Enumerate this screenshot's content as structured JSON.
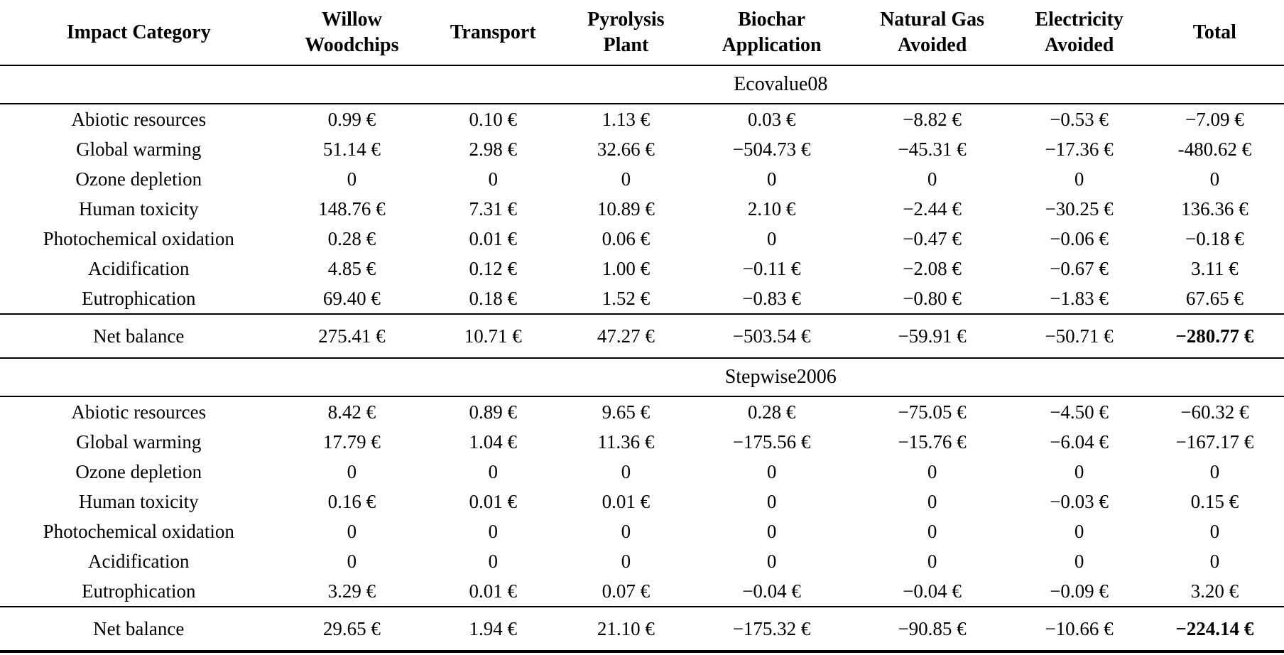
{
  "table": {
    "columns": [
      "Impact Category",
      "Willow Woodchips",
      "Transport",
      "Pyrolysis Plant",
      "Biochar Application",
      "Natural Gas Avoided",
      "Electricity Avoided",
      "Total"
    ],
    "sections": [
      {
        "title": "Ecovalue08",
        "rows": [
          {
            "label": "Abiotic resources",
            "values": [
              "0.99 €",
              "0.10 €",
              "1.13 €",
              "0.03 €",
              "−8.82 €",
              "−0.53 €",
              "−7.09 €"
            ]
          },
          {
            "label": "Global warming",
            "values": [
              "51.14 €",
              "2.98 €",
              "32.66 €",
              "−504.73 €",
              "−45.31 €",
              "−17.36 €",
              "-480.62 €"
            ]
          },
          {
            "label": "Ozone depletion",
            "values": [
              "0",
              "0",
              "0",
              "0",
              "0",
              "0",
              "0"
            ]
          },
          {
            "label": "Human toxicity",
            "values": [
              "148.76 €",
              "7.31 €",
              "10.89 €",
              "2.10 €",
              "−2.44 €",
              "−30.25 €",
              "136.36 €"
            ]
          },
          {
            "label": "Photochemical oxidation",
            "values": [
              "0.28 €",
              "0.01 €",
              "0.06 €",
              "0",
              "−0.47 €",
              "−0.06 €",
              "−0.18 €"
            ]
          },
          {
            "label": "Acidification",
            "values": [
              "4.85 €",
              "0.12 €",
              "1.00 €",
              "−0.11 €",
              "−2.08 €",
              "−0.67 €",
              "3.11 €"
            ]
          },
          {
            "label": "Eutrophication",
            "values": [
              "69.40 €",
              "0.18 €",
              "1.52 €",
              "−0.83 €",
              "−0.80 €",
              "−1.83 €",
              "67.65 €"
            ]
          }
        ],
        "net_balance": {
          "label": "Net balance",
          "values": [
            "275.41 €",
            "10.71 €",
            "47.27 €",
            "−503.54 €",
            "−59.91 €",
            "−50.71 €",
            "−280.77 €"
          ]
        }
      },
      {
        "title": "Stepwise2006",
        "rows": [
          {
            "label": "Abiotic resources",
            "values": [
              "8.42 €",
              "0.89 €",
              "9.65 €",
              "0.28 €",
              "−75.05 €",
              "−4.50 €",
              "−60.32 €"
            ]
          },
          {
            "label": "Global warming",
            "values": [
              "17.79 €",
              "1.04 €",
              "11.36 €",
              "−175.56 €",
              "−15.76 €",
              "−6.04 €",
              "−167.17 €"
            ]
          },
          {
            "label": "Ozone depletion",
            "values": [
              "0",
              "0",
              "0",
              "0",
              "0",
              "0",
              "0"
            ]
          },
          {
            "label": "Human toxicity",
            "values": [
              "0.16 €",
              "0.01 €",
              "0.01 €",
              "0",
              "0",
              "−0.03 €",
              "0.15 €"
            ]
          },
          {
            "label": "Photochemical oxidation",
            "values": [
              "0",
              "0",
              "0",
              "0",
              "0",
              "0",
              "0"
            ]
          },
          {
            "label": "Acidification",
            "values": [
              "0",
              "0",
              "0",
              "0",
              "0",
              "0",
              "0"
            ]
          },
          {
            "label": "Eutrophication",
            "values": [
              "3.29 €",
              "0.01 €",
              "0.07 €",
              "−0.04 €",
              "−0.04 €",
              "−0.09 €",
              "3.20 €"
            ]
          }
        ],
        "net_balance": {
          "label": "Net balance",
          "values": [
            "29.65 €",
            "1.94 €",
            "21.10 €",
            "−175.32 €",
            "−90.85 €",
            "−10.66 €",
            "−224.14 €"
          ]
        }
      }
    ]
  },
  "colors": {
    "text": "#000000",
    "rule": "#000000",
    "background": "#ffffff"
  },
  "column_widths_pct": [
    21.6,
    11.6,
    10.4,
    10.3,
    12.4,
    12.6,
    10.3,
    10.8
  ]
}
